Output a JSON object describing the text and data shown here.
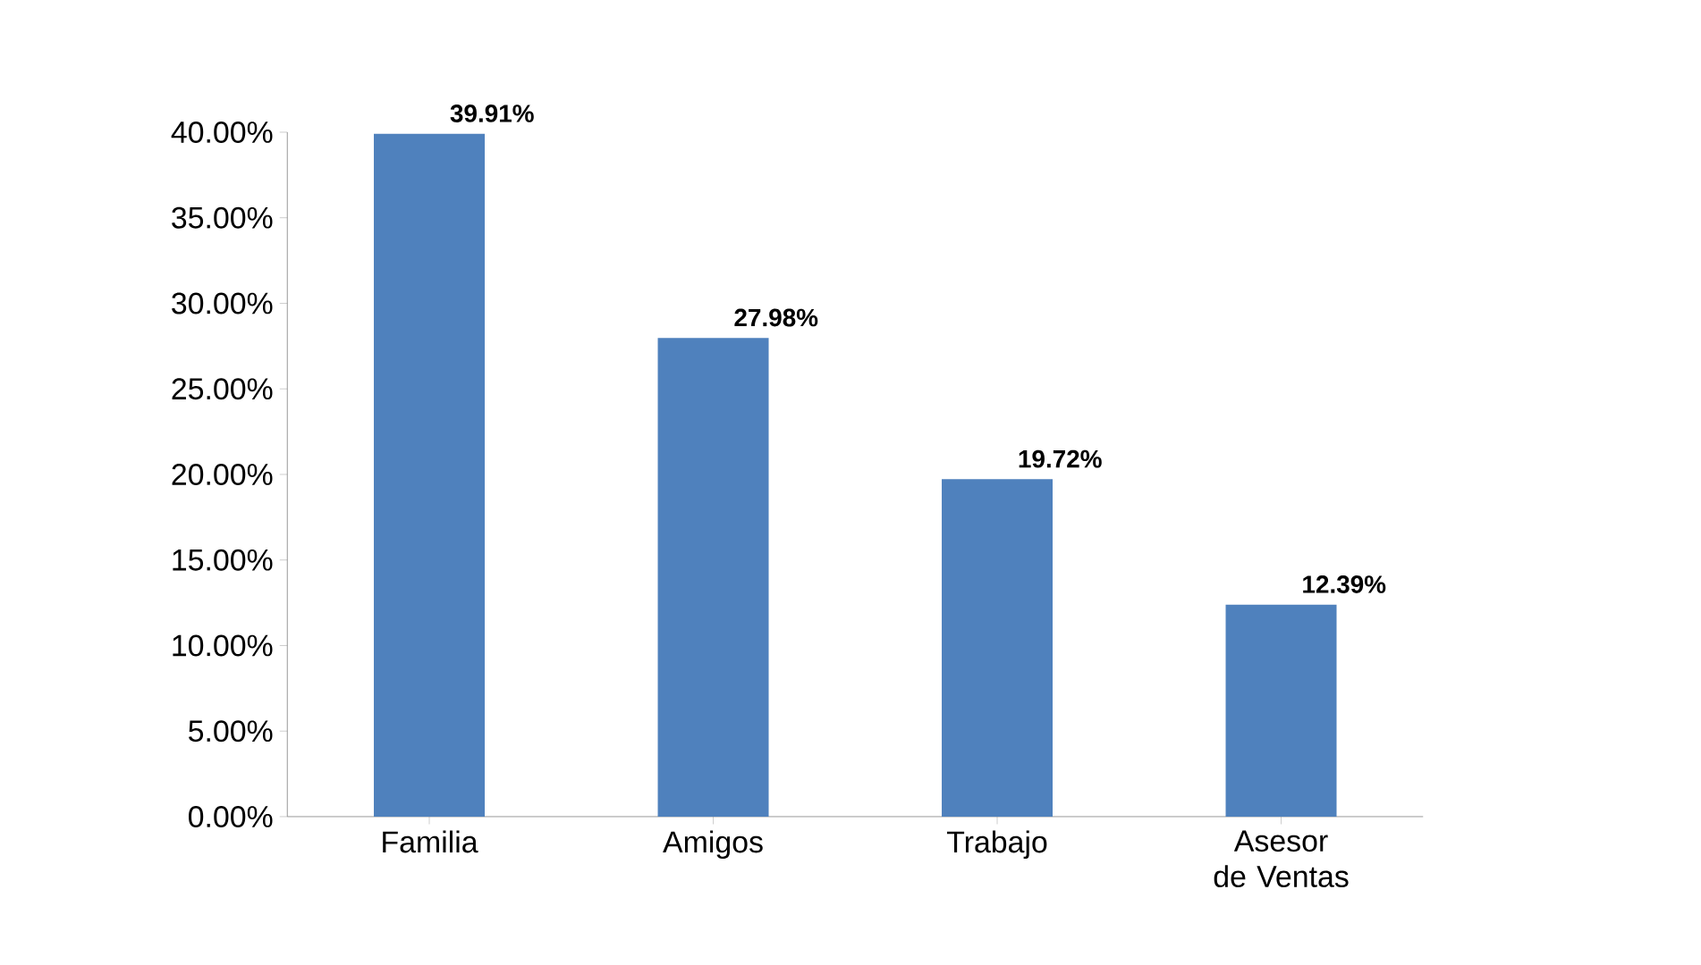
{
  "chart_data": {
    "type": "bar",
    "categories": [
      "Familia",
      "Amigos",
      "Trabajo",
      "Asesor de Ventas"
    ],
    "values": [
      39.91,
      27.98,
      19.72,
      12.39
    ],
    "value_labels": [
      "39.91%",
      "27.98%",
      "19.72%",
      "12.39%"
    ],
    "color": "#4f81bd",
    "ylim": [
      0,
      40
    ],
    "yticks": [
      {
        "value": 0,
        "label": "0.00%"
      },
      {
        "value": 5,
        "label": "5.00%"
      },
      {
        "value": 10,
        "label": "10.00%"
      },
      {
        "value": 15,
        "label": "15.00%"
      },
      {
        "value": 20,
        "label": "20.00%"
      },
      {
        "value": 25,
        "label": "25.00%"
      },
      {
        "value": 30,
        "label": "30.00%"
      },
      {
        "value": 35,
        "label": "35.00%"
      },
      {
        "value": 40,
        "label": "40.00%"
      }
    ]
  }
}
